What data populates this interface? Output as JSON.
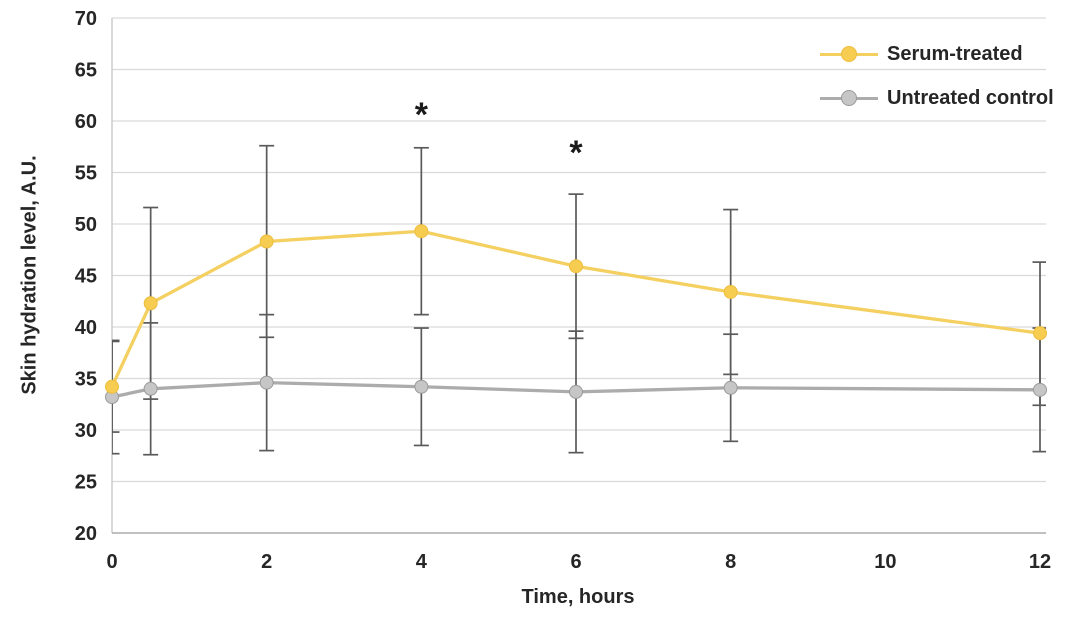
{
  "chart_data": {
    "type": "line",
    "title": "",
    "xlabel": "Time, hours",
    "ylabel": "Skin hydration level, A.U.",
    "xlim": [
      0,
      12
    ],
    "ylim": [
      20,
      70
    ],
    "xticks": [
      0,
      2,
      4,
      6,
      8,
      10,
      12
    ],
    "ytick_step": 5,
    "grid": "horizontal",
    "legend_position": "top-right",
    "x": [
      0,
      0.5,
      2,
      4,
      6,
      8,
      12
    ],
    "series": [
      {
        "name": "Serum-treated",
        "color": "#F4D061",
        "marker_fill": "#F6CC51",
        "marker_edge": "#EDBE3F",
        "values": [
          34.2,
          42.3,
          48.3,
          49.3,
          45.9,
          43.4,
          39.4
        ],
        "error_low": [
          29.8,
          33.0,
          39.0,
          41.2,
          38.9,
          35.4,
          32.4
        ],
        "error_high": [
          38.6,
          51.6,
          57.6,
          57.4,
          52.9,
          51.4,
          46.3
        ]
      },
      {
        "name": "Untreated control",
        "color": "#ACACAC",
        "marker_fill": "#C6C6C6",
        "marker_edge": "#9A9A9A",
        "values": [
          33.2,
          34.0,
          34.6,
          34.2,
          33.7,
          34.1,
          33.9
        ],
        "error_low": [
          27.7,
          27.6,
          28.0,
          28.5,
          27.8,
          28.9,
          27.9
        ],
        "error_high": [
          38.7,
          40.4,
          41.2,
          39.9,
          39.6,
          39.3,
          39.9
        ]
      }
    ],
    "annotations": [
      {
        "label": "*",
        "x": 4,
        "y": 60.7
      },
      {
        "label": "*",
        "x": 6,
        "y": 57.0
      }
    ],
    "colors": {
      "error_bar": "#5A5A5A",
      "grid": "#D9D9D9",
      "axis_left": "#C9C9C9",
      "axis_bottom": "#ABABAB",
      "text": "#262626",
      "annotation": "#1A1A1A"
    }
  }
}
